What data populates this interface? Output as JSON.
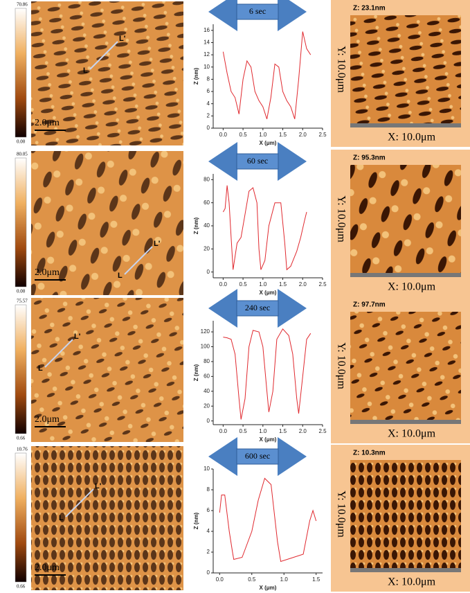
{
  "chart_data": [
    {
      "type": "line",
      "title": "6 sec",
      "xlabel": "X (μm)",
      "ylabel": "Z (nm)",
      "x": [
        0,
        0.1,
        0.2,
        0.3,
        0.4,
        0.5,
        0.6,
        0.7,
        0.8,
        0.9,
        1.0,
        1.1,
        1.2,
        1.3,
        1.4,
        1.5,
        1.6,
        1.7,
        1.8,
        1.9,
        2.0,
        2.1,
        2.2
      ],
      "series": [
        {
          "color": "#e0282e",
          "values": [
            12.5,
            9,
            6,
            5,
            2.3,
            8,
            11,
            10,
            6,
            4.5,
            3.5,
            1.5,
            5,
            10.5,
            10,
            6,
            4.5,
            3.5,
            1.5,
            8,
            15.8,
            13,
            12
          ]
        }
      ],
      "xlim": [
        -0.25,
        2.5
      ],
      "ylim": [
        0,
        17
      ],
      "xticks": [
        {
          "value": 0,
          "label": "0.0"
        },
        0.5,
        {
          "value": 1,
          "label": "1.0"
        },
        1.5,
        {
          "value": 2,
          "label": "2.0"
        },
        2.5
      ],
      "yticks": [
        0,
        2,
        4,
        6,
        8,
        10,
        12,
        14,
        16
      ]
    },
    {
      "type": "line",
      "title": "60 sec",
      "xlabel": "X (μm)",
      "ylabel": "Z (nm)",
      "x": [
        0,
        0.05,
        0.1,
        0.15,
        0.2,
        0.25,
        0.35,
        0.45,
        0.55,
        0.65,
        0.75,
        0.85,
        0.9,
        0.95,
        1.05,
        1.15,
        1.3,
        1.45,
        1.55,
        1.6,
        1.7,
        1.85,
        1.95,
        2.05,
        2.1
      ],
      "series": [
        {
          "color": "#e0282e",
          "values": [
            52,
            55,
            75,
            60,
            30,
            2,
            25,
            30,
            50,
            70,
            73,
            60,
            20,
            2,
            10,
            40,
            60,
            60,
            25,
            2,
            5,
            18,
            30,
            45,
            52
          ]
        }
      ],
      "xlim": [
        -0.25,
        2.5
      ],
      "ylim": [
        -5,
        85
      ],
      "xticks": [
        {
          "value": 0,
          "label": "0.0"
        },
        0.5,
        {
          "value": 1,
          "label": "1.0"
        },
        1.5,
        {
          "value": 2,
          "label": "2.0"
        },
        2.5
      ],
      "yticks": [
        0,
        20,
        40,
        60,
        80
      ]
    },
    {
      "type": "line",
      "title": "240 sec",
      "xlabel": "X (μm)",
      "ylabel": "Z (nm)",
      "x": [
        0,
        0.1,
        0.2,
        0.3,
        0.4,
        0.45,
        0.55,
        0.65,
        0.75,
        0.9,
        1.0,
        1.1,
        1.15,
        1.25,
        1.35,
        1.5,
        1.65,
        1.75,
        1.85,
        1.9,
        2.0,
        2.1,
        2.2
      ],
      "series": [
        {
          "color": "#e0282e",
          "values": [
            113,
            112,
            110,
            90,
            30,
            2,
            30,
            100,
            122,
            120,
            100,
            40,
            12,
            40,
            110,
            124,
            115,
            90,
            30,
            10,
            60,
            110,
            118
          ]
        }
      ],
      "xlim": [
        -0.25,
        2.5
      ],
      "ylim": [
        -5,
        135
      ],
      "xticks": [
        {
          "value": 0,
          "label": "0.0"
        },
        0.5,
        {
          "value": 1,
          "label": "1.0"
        },
        1.5,
        {
          "value": 2,
          "label": "2.0"
        },
        2.5
      ],
      "yticks": [
        0,
        20,
        40,
        60,
        80,
        100,
        120
      ]
    },
    {
      "type": "line",
      "title": "600 sec",
      "xlabel": "X (μm)",
      "ylabel": "Z (nm)",
      "x": [
        0,
        0.03,
        0.08,
        0.15,
        0.2,
        0.22,
        0.35,
        0.5,
        0.6,
        0.7,
        0.8,
        0.9,
        0.95,
        1.1,
        1.3,
        1.4,
        1.45,
        1.5
      ],
      "series": [
        {
          "color": "#e0282e",
          "values": [
            5.8,
            7.5,
            7.5,
            4,
            2,
            1.3,
            1.5,
            4,
            7,
            9.1,
            8.5,
            3,
            1.1,
            1.4,
            1.8,
            5,
            6,
            5
          ]
        }
      ],
      "xlim": [
        -0.1,
        1.6
      ],
      "ylim": [
        0,
        10
      ],
      "xticks": [
        {
          "value": 0,
          "label": "0.0"
        },
        0.5,
        {
          "value": 1,
          "label": "1.0"
        },
        1.5
      ],
      "yticks": [
        0,
        2,
        4,
        6,
        8,
        10
      ]
    }
  ],
  "panels": [
    {
      "colorbar_max": "70.86",
      "colorbar_min": "0.00",
      "scale_bar": "2.0μm",
      "line_a": "L",
      "line_b": "L'",
      "z_label": "Z: 23.1nm",
      "x_label": "X: 10.0μm",
      "y_label": "Y: 10.0μm"
    },
    {
      "colorbar_max": "80.05",
      "colorbar_min": "0.00",
      "scale_bar": "2.0μm",
      "line_a": "L",
      "line_b": "L'",
      "z_label": "Z: 95.3nm",
      "x_label": "X: 10.0μm",
      "y_label": "Y: 10.0μm"
    },
    {
      "colorbar_max": "75.57",
      "colorbar_min": "0.66",
      "scale_bar": "2.0μm",
      "line_a": "L",
      "line_b": "L'",
      "z_label": "Z: 97.7nm",
      "x_label": "X: 10.0μm",
      "y_label": "Y: 10.0μm"
    },
    {
      "colorbar_max": "10.76",
      "colorbar_min": "0.66",
      "scale_bar": "2.0μm",
      "line_a": "L",
      "line_b": "L'",
      "z_label": "Z: 10.3nm",
      "x_label": "X: 10.0μm",
      "y_label": "Y: 10.0μm"
    }
  ]
}
